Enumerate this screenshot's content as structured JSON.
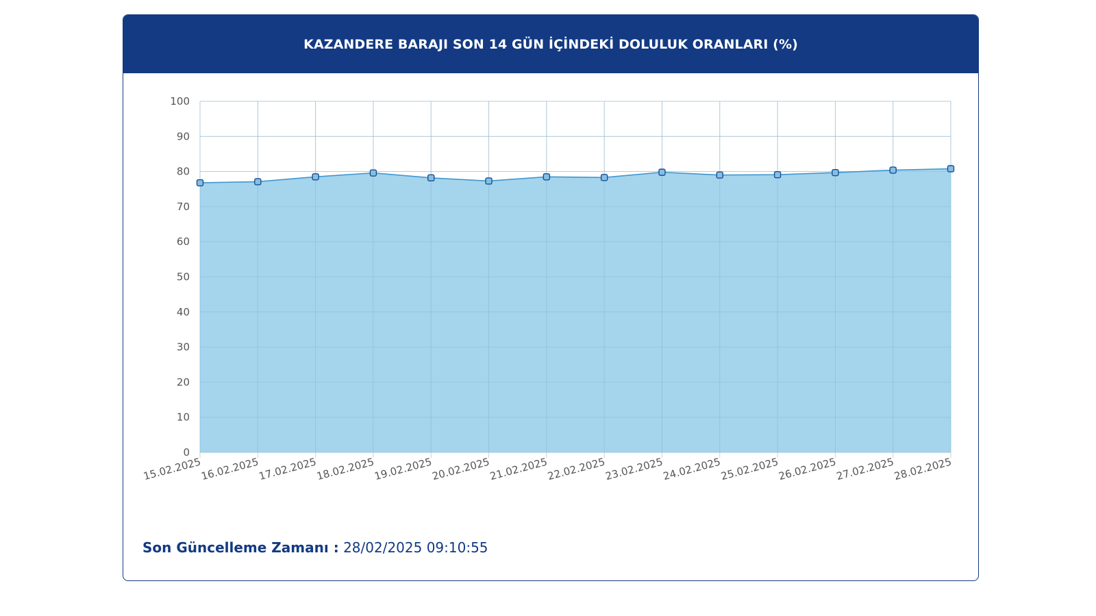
{
  "header": {
    "title": "KAZANDERE BARAJI SON 14 GÜN İÇİNDEKİ DOLULUK ORANLARI (%)"
  },
  "footer": {
    "label": "Son Güncelleme Zamanı :",
    "value": "28/02/2025 09:10:55"
  },
  "colors": {
    "header_bg": "#133a82",
    "area_fill": "#9dd0ec",
    "line": "#3f97cf",
    "marker_fill": "#84bfe6",
    "marker_stroke": "#1b4f8c"
  },
  "chart_data": {
    "type": "area",
    "categories": [
      "15.02.2025",
      "16.02.2025",
      "17.02.2025",
      "18.02.2025",
      "19.02.2025",
      "20.02.2025",
      "21.02.2025",
      "22.02.2025",
      "23.02.2025",
      "24.02.2025",
      "25.02.2025",
      "26.02.2025",
      "27.02.2025",
      "28.02.2025"
    ],
    "values": [
      76.8,
      77.1,
      78.5,
      79.6,
      78.2,
      77.3,
      78.5,
      78.3,
      79.8,
      79.0,
      79.1,
      79.7,
      80.4,
      80.8
    ],
    "ylim": [
      0,
      100
    ],
    "yticks": [
      0,
      10,
      20,
      30,
      40,
      50,
      60,
      70,
      80,
      90,
      100
    ],
    "grid": true,
    "legend": "none"
  }
}
